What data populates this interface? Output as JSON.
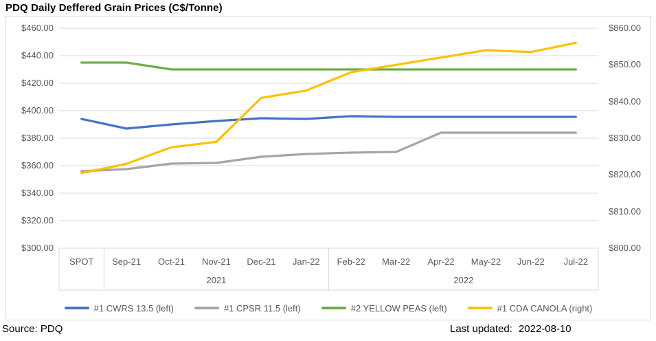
{
  "title": "PDQ Daily Deffered Grain Prices (C$/Tonne)",
  "footer": {
    "source": "Source: PDQ",
    "last_updated_label": "Last updated:",
    "last_updated_value": "2022-08-10"
  },
  "colors": {
    "grid": "#d9d9d9",
    "axis_text": "#595959",
    "frame_border": "#d9d9d9"
  },
  "chart_data": {
    "type": "line",
    "categories": [
      "SPOT",
      "Sep-21",
      "Oct-21",
      "Nov-21",
      "Dec-21",
      "Jan-22",
      "Feb-22",
      "Mar-22",
      "Apr-22",
      "May-22",
      "Jun-22",
      "Jul-22"
    ],
    "category_groups": [
      {
        "label": "2021",
        "start": 1,
        "end": 5
      },
      {
        "label": "2022",
        "start": 6,
        "end": 11
      }
    ],
    "left_axis": {
      "min": 300,
      "max": 460,
      "step": 20,
      "tick_labels": [
        "$460.00",
        "$440.00",
        "$420.00",
        "$400.00",
        "$380.00",
        "$360.00",
        "$340.00",
        "$320.00",
        "$300.00"
      ]
    },
    "right_axis": {
      "min": 800,
      "max": 860,
      "step": 10,
      "tick_labels": [
        "$860.00",
        "$850.00",
        "$840.00",
        "$830.00",
        "$820.00",
        "$810.00",
        "$800.00"
      ]
    },
    "series": [
      {
        "name": "#1 CWRS 13.5 (left)",
        "axis": "left",
        "color": "#4472C4",
        "values": [
          394,
          387,
          390,
          392.5,
          394.5,
          394,
          396,
          395.5,
          395.5,
          395.5,
          395.5,
          395.5
        ]
      },
      {
        "name": "#1 CPSR 11.5 (left)",
        "axis": "left",
        "color": "#A5A5A5",
        "values": [
          356,
          357.5,
          361.5,
          362,
          366.5,
          368.5,
          369.5,
          370,
          384,
          384,
          384,
          384
        ]
      },
      {
        "name": "#2 YELLOW PEAS (left)",
        "axis": "left",
        "color": "#70AD47",
        "values": [
          435,
          435,
          430,
          430,
          430,
          430,
          430,
          430,
          430,
          430,
          430,
          430
        ]
      },
      {
        "name": "#1 CDA CANOLA (right)",
        "axis": "right",
        "color": "#FFC000",
        "values": [
          820.5,
          823,
          827.5,
          829,
          841,
          843,
          848,
          850,
          852,
          854,
          853.5,
          856
        ]
      }
    ],
    "grid": true,
    "legend_position": "bottom"
  }
}
